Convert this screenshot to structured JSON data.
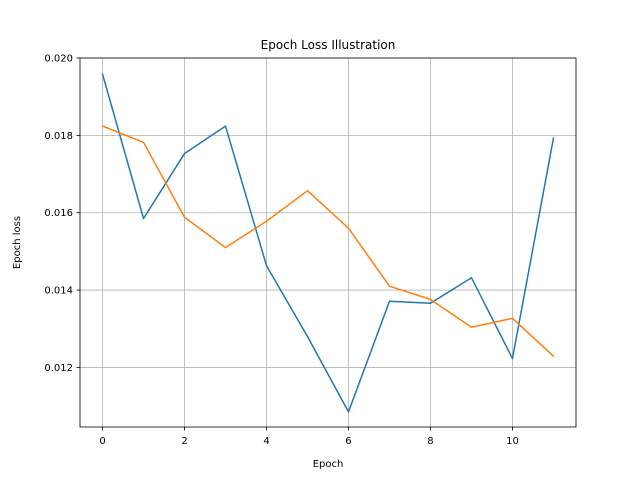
{
  "chart_data": {
    "type": "line",
    "title": "Epoch Loss Illustration",
    "xlabel": "Epoch",
    "ylabel": "Epoch loss",
    "x": [
      0,
      1,
      2,
      3,
      4,
      5,
      6,
      7,
      8,
      9,
      10,
      11
    ],
    "xlim": [
      -0.55,
      11.55
    ],
    "ylim": [
      0.01046,
      0.02
    ],
    "xticks": [
      0,
      2,
      4,
      6,
      8,
      10
    ],
    "yticks": [
      0.012,
      0.014,
      0.016,
      0.018,
      0.02
    ],
    "ytick_labels": [
      "0.012",
      "0.014",
      "0.016",
      "0.018",
      "0.020"
    ],
    "grid": true,
    "series": [
      {
        "color": "#1f77b4",
        "values": [
          0.01958,
          0.01585,
          0.01753,
          0.01824,
          0.01463,
          0.0128,
          0.01085,
          0.01371,
          0.01366,
          0.01432,
          0.01223,
          0.01793
        ]
      },
      {
        "color": "#ff7f0e",
        "values": [
          0.01824,
          0.01782,
          0.01588,
          0.0151,
          0.01578,
          0.01657,
          0.0156,
          0.0141,
          0.01376,
          0.01304,
          0.01327,
          0.01229
        ]
      }
    ]
  }
}
